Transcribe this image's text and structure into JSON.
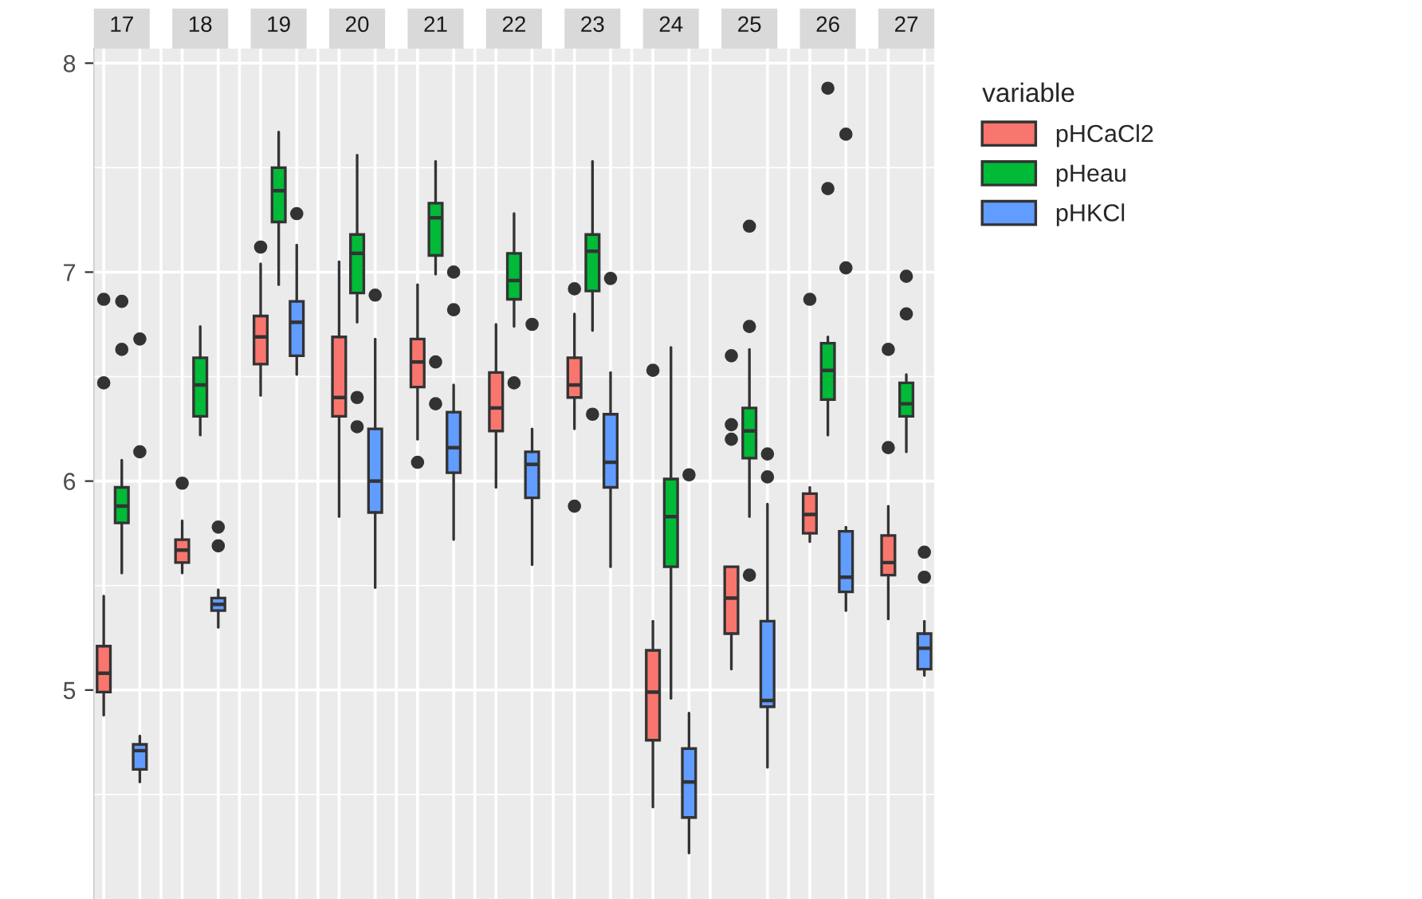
{
  "chart_data": {
    "type": "box",
    "categories": [
      "17",
      "18",
      "19",
      "20",
      "21",
      "22",
      "23",
      "24",
      "25",
      "26",
      "27"
    ],
    "series": [
      {
        "name": "pHCaCl2",
        "color": "#f8766d",
        "boxes": [
          {
            "low": 4.88,
            "q1": 4.99,
            "median": 5.08,
            "q3": 5.21,
            "high": 5.45,
            "outliers": [
              6.87,
              6.47
            ]
          },
          {
            "low": 5.56,
            "q1": 5.61,
            "median": 5.67,
            "q3": 5.72,
            "high": 5.81,
            "outliers": [
              5.99
            ]
          },
          {
            "low": 6.41,
            "q1": 6.56,
            "median": 6.69,
            "q3": 6.79,
            "high": 7.04,
            "outliers": [
              7.12
            ]
          },
          {
            "low": 5.83,
            "q1": 6.31,
            "median": 6.4,
            "q3": 6.69,
            "high": 7.05
          },
          {
            "low": 6.2,
            "q1": 6.45,
            "median": 6.57,
            "q3": 6.68,
            "high": 6.94,
            "outliers": [
              6.09
            ]
          },
          {
            "low": 5.97,
            "q1": 6.24,
            "median": 6.35,
            "q3": 6.52,
            "high": 6.75
          },
          {
            "low": 6.25,
            "q1": 6.4,
            "median": 6.46,
            "q3": 6.59,
            "high": 6.8,
            "outliers": [
              6.92,
              5.88
            ]
          },
          {
            "low": 4.44,
            "q1": 4.76,
            "median": 4.99,
            "q3": 5.19,
            "high": 5.33,
            "outliers": [
              6.53
            ]
          },
          {
            "low": 5.1,
            "q1": 5.27,
            "median": 5.44,
            "q3": 5.59,
            "high": 5.59,
            "outliers": [
              6.6,
              6.27,
              6.2
            ]
          },
          {
            "low": 5.71,
            "q1": 5.75,
            "median": 5.84,
            "q3": 5.94,
            "high": 5.97,
            "outliers": [
              6.87
            ]
          },
          {
            "low": 5.34,
            "q1": 5.55,
            "median": 5.61,
            "q3": 5.74,
            "high": 5.88,
            "outliers": [
              6.63,
              6.16
            ]
          }
        ]
      },
      {
        "name": "pHeau",
        "color": "#00ba38",
        "boxes": [
          {
            "low": 5.56,
            "q1": 5.8,
            "median": 5.88,
            "q3": 5.97,
            "high": 6.1,
            "outliers": [
              6.86,
              6.63
            ]
          },
          {
            "low": 6.22,
            "q1": 6.31,
            "median": 6.46,
            "q3": 6.59,
            "high": 6.74
          },
          {
            "low": 6.94,
            "q1": 7.24,
            "median": 7.39,
            "q3": 7.5,
            "high": 7.67
          },
          {
            "low": 6.76,
            "q1": 6.9,
            "median": 7.09,
            "q3": 7.18,
            "high": 7.56,
            "outliers": [
              6.4,
              6.26
            ]
          },
          {
            "low": 6.99,
            "q1": 7.08,
            "median": 7.26,
            "q3": 7.33,
            "high": 7.53,
            "outliers": [
              6.57,
              6.37
            ]
          },
          {
            "low": 6.74,
            "q1": 6.87,
            "median": 6.96,
            "q3": 7.09,
            "high": 7.28,
            "outliers": [
              6.47
            ]
          },
          {
            "low": 6.72,
            "q1": 6.91,
            "median": 7.1,
            "q3": 7.18,
            "high": 7.53,
            "outliers": [
              6.32
            ]
          },
          {
            "low": 4.96,
            "q1": 5.59,
            "median": 5.83,
            "q3": 6.01,
            "high": 6.64
          },
          {
            "low": 5.83,
            "q1": 6.11,
            "median": 6.24,
            "q3": 6.35,
            "high": 6.63,
            "outliers": [
              7.22,
              6.74,
              5.55
            ]
          },
          {
            "low": 6.22,
            "q1": 6.39,
            "median": 6.53,
            "q3": 6.66,
            "high": 6.69,
            "outliers": [
              7.88,
              7.4
            ]
          },
          {
            "low": 6.14,
            "q1": 6.31,
            "median": 6.37,
            "q3": 6.47,
            "high": 6.51,
            "outliers": [
              6.98,
              6.8
            ]
          }
        ]
      },
      {
        "name": "pHKCl",
        "color": "#619cff",
        "boxes": [
          {
            "low": 4.56,
            "q1": 4.62,
            "median": 4.71,
            "q3": 4.74,
            "high": 4.78,
            "outliers": [
              6.68,
              6.14
            ]
          },
          {
            "low": 5.3,
            "q1": 5.38,
            "median": 5.41,
            "q3": 5.44,
            "high": 5.48,
            "outliers": [
              5.78,
              5.69
            ]
          },
          {
            "low": 6.51,
            "q1": 6.6,
            "median": 6.76,
            "q3": 6.86,
            "high": 7.13,
            "outliers": [
              7.28
            ]
          },
          {
            "low": 5.49,
            "q1": 5.85,
            "median": 6.0,
            "q3": 6.25,
            "high": 6.68,
            "outliers": [
              6.89
            ]
          },
          {
            "low": 5.72,
            "q1": 6.04,
            "median": 6.16,
            "q3": 6.33,
            "high": 6.46,
            "outliers": [
              7.0,
              6.82
            ]
          },
          {
            "low": 5.6,
            "q1": 5.92,
            "median": 6.08,
            "q3": 6.14,
            "high": 6.25,
            "outliers": [
              6.75
            ]
          },
          {
            "low": 5.59,
            "q1": 5.97,
            "median": 6.09,
            "q3": 6.32,
            "high": 6.52,
            "outliers": [
              6.97
            ]
          },
          {
            "low": 4.22,
            "q1": 4.39,
            "median": 4.56,
            "q3": 4.72,
            "high": 4.89,
            "outliers": [
              6.03
            ]
          },
          {
            "low": 4.63,
            "q1": 4.92,
            "median": 4.95,
            "q3": 5.33,
            "high": 5.89,
            "outliers": [
              6.13,
              6.02
            ]
          },
          {
            "low": 5.38,
            "q1": 5.47,
            "median": 5.54,
            "q3": 5.76,
            "high": 5.78,
            "outliers": [
              7.66,
              7.02
            ]
          },
          {
            "low": 5.07,
            "q1": 5.1,
            "median": 5.2,
            "q3": 5.27,
            "high": 5.33,
            "outliers": [
              5.66,
              5.54
            ]
          }
        ]
      }
    ],
    "ylim": [
      4.0,
      8.07
    ],
    "yticks": [
      5,
      6,
      7,
      8
    ],
    "grid": true,
    "legend": "right",
    "legend_title": "variable"
  }
}
